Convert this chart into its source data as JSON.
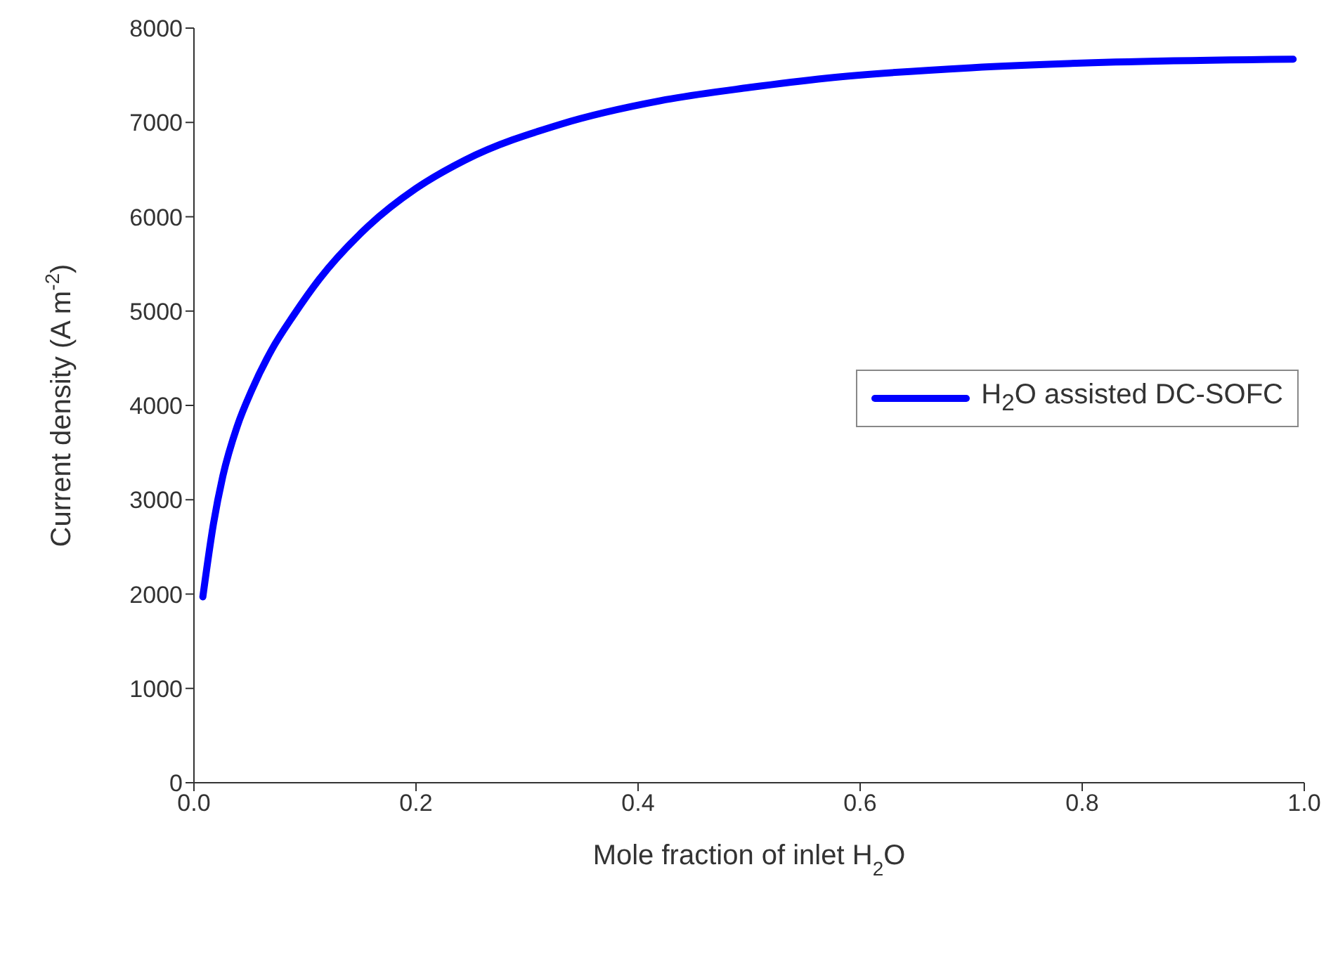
{
  "chart_data": {
    "type": "line",
    "xlabel": "Mole fraction of inlet H$_{2}$O",
    "ylabel": "Current density (A m$^{-2}$)",
    "x": [
      0.008,
      0.0175,
      0.026,
      0.039,
      0.052,
      0.07,
      0.09,
      0.113,
      0.157,
      0.2,
      0.244,
      0.33,
      0.42,
      0.5,
      0.57,
      0.7,
      0.83,
      0.99
    ],
    "series": [
      {
        "name": "H$_{2}$O assisted DC-SOFC",
        "color": "#0000ff",
        "values": [
          1970,
          2740,
          3250,
          3780,
          4160,
          4590,
          4960,
          5340,
          5900,
          6300,
          6600,
          6980,
          7230,
          7370,
          7470,
          7580,
          7640,
          7670
        ]
      }
    ],
    "xlim": [
      0,
      1
    ],
    "xticks": [
      {
        "value": 0,
        "label": "0.0"
      },
      0.2,
      0.4,
      0.6,
      0.8,
      {
        "value": 1,
        "label": "1.0"
      }
    ],
    "ylim": [
      0,
      8000
    ],
    "yticks": [
      0,
      1000,
      2000,
      3000,
      4000,
      5000,
      6000,
      7000,
      8000
    ],
    "grid": false,
    "legend": "right",
    "marker": "none",
    "line_style": "solid"
  }
}
